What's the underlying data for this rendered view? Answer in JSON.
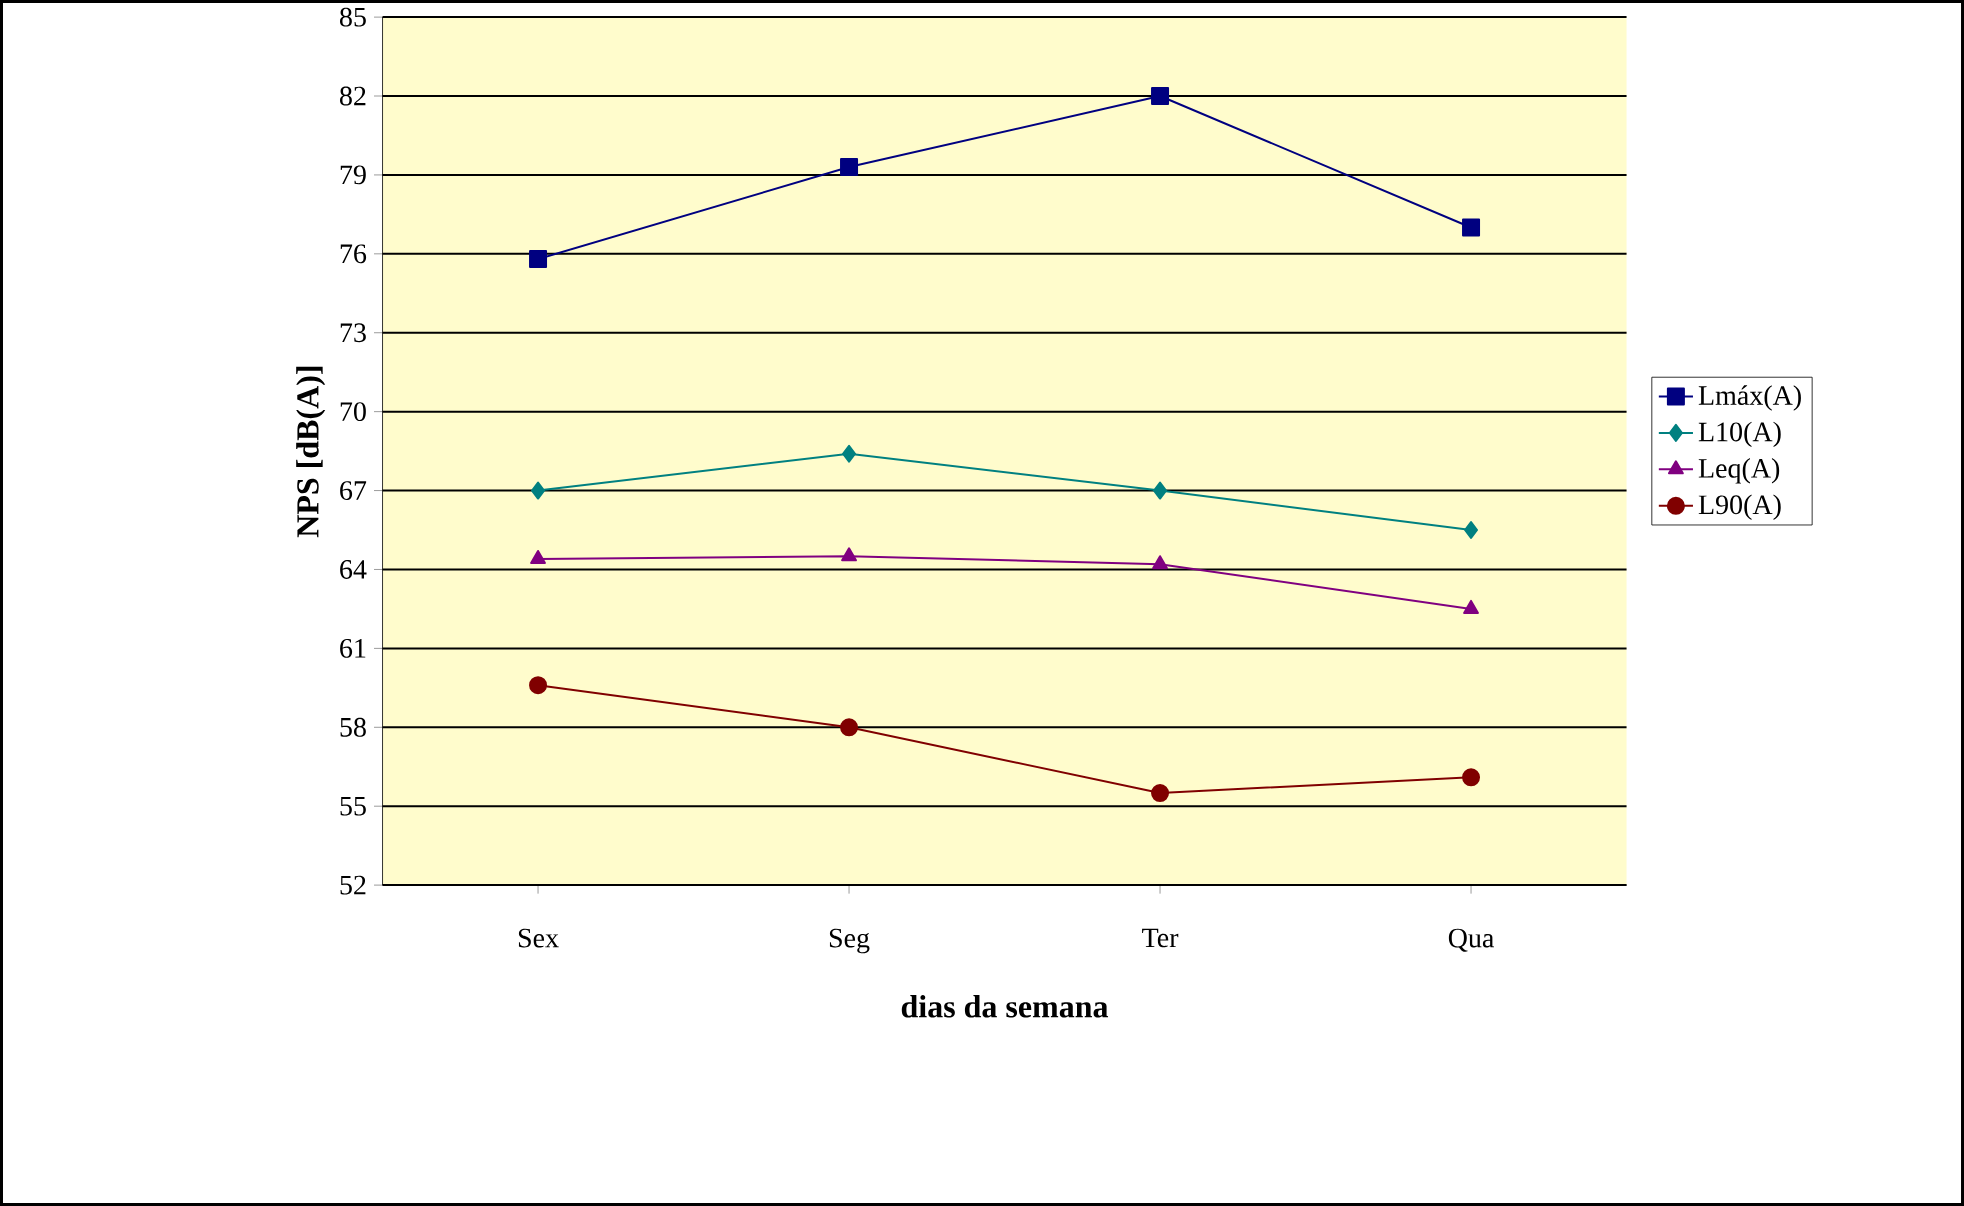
{
  "chart_data": {
    "type": "line",
    "xlabel": "dias da semana",
    "ylabel": "NPS [dB(A)]",
    "categories": [
      "Sex",
      "Seg",
      "Ter",
      "Qua"
    ],
    "series": [
      {
        "name": "Lmáx(A)",
        "color": "#000080",
        "marker": "square",
        "values": [
          75.8,
          79.3,
          82.0,
          77.0
        ]
      },
      {
        "name": "L10(A)",
        "color": "#008080",
        "marker": "diamond",
        "values": [
          67.0,
          68.4,
          67.0,
          65.5
        ]
      },
      {
        "name": "Leq(A)",
        "color": "#800080",
        "marker": "triangle",
        "values": [
          64.4,
          64.5,
          64.2,
          62.5
        ]
      },
      {
        "name": "L90(A)",
        "color": "#800000",
        "marker": "circle",
        "values": [
          59.6,
          58.0,
          55.5,
          56.1
        ]
      }
    ],
    "ylim": [
      52,
      85
    ],
    "yticks": [
      52,
      55,
      58,
      61,
      64,
      67,
      70,
      73,
      76,
      79,
      82,
      85
    ],
    "grid": "y",
    "legend": "right"
  }
}
